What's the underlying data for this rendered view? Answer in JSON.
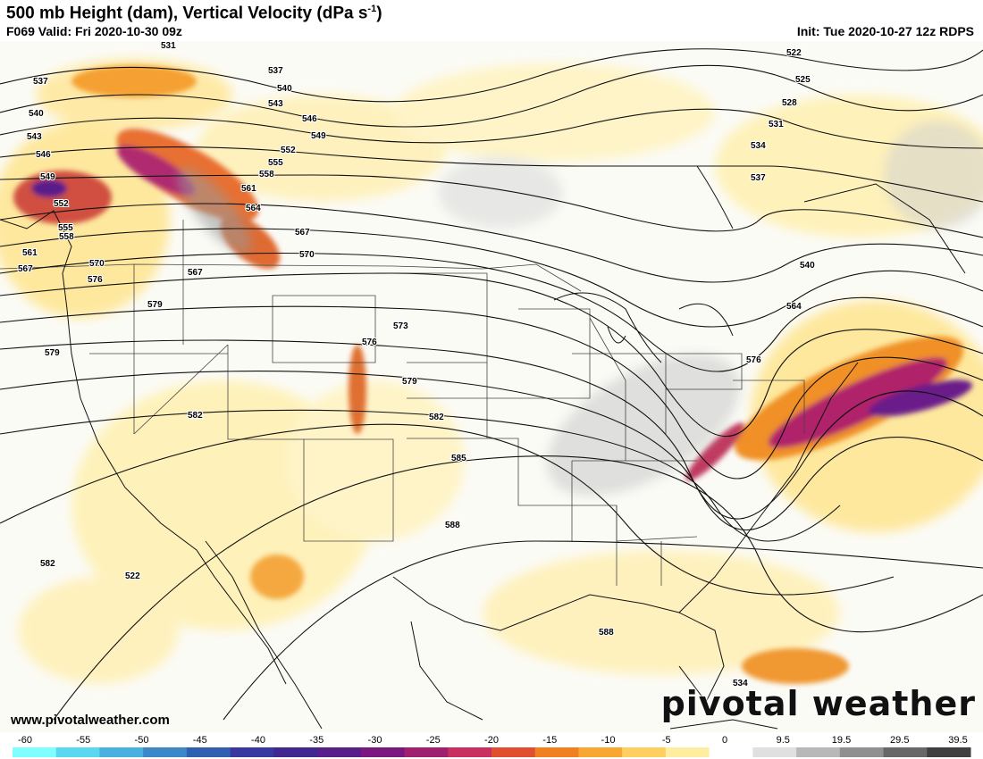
{
  "header": {
    "title": "500 mb Height (dam), Vertical Velocity (dPa s",
    "title_sup": "-1",
    "title_end": ")",
    "valid": "F069 Valid: Fri 2020-10-30 09z",
    "init": "Init: Tue 2020-10-27 12z RDPS"
  },
  "footer": {
    "website": "www.pivotalweather.com",
    "brand": "pivotal weather"
  },
  "contour_labels": [
    "522",
    "525",
    "528",
    "531",
    "534",
    "537",
    "540",
    "543",
    "546",
    "549",
    "552",
    "555",
    "558",
    "561",
    "564",
    "567",
    "570",
    "573",
    "576",
    "579",
    "582",
    "585",
    "588"
  ],
  "colorbar": {
    "ticks": [
      "-60",
      "-55",
      "-50",
      "-45",
      "-40",
      "-35",
      "-30",
      "-25",
      "-20",
      "-15",
      "-10",
      "-5",
      "0",
      "9.5",
      "19.5",
      "29.5",
      "39.5"
    ],
    "colors": [
      "#7fffff",
      "#5ad8f0",
      "#4ab0e0",
      "#3a88c8",
      "#3060b0",
      "#3838a0",
      "#402890",
      "#581e8a",
      "#7a1880",
      "#a02070",
      "#c83060",
      "#e05030",
      "#f08020",
      "#f8a830",
      "#ffd060",
      "#ffeea0",
      "#ffffff",
      "#e0e0e0",
      "#b8b8b8",
      "#909090",
      "#686868",
      "#404040"
    ]
  }
}
